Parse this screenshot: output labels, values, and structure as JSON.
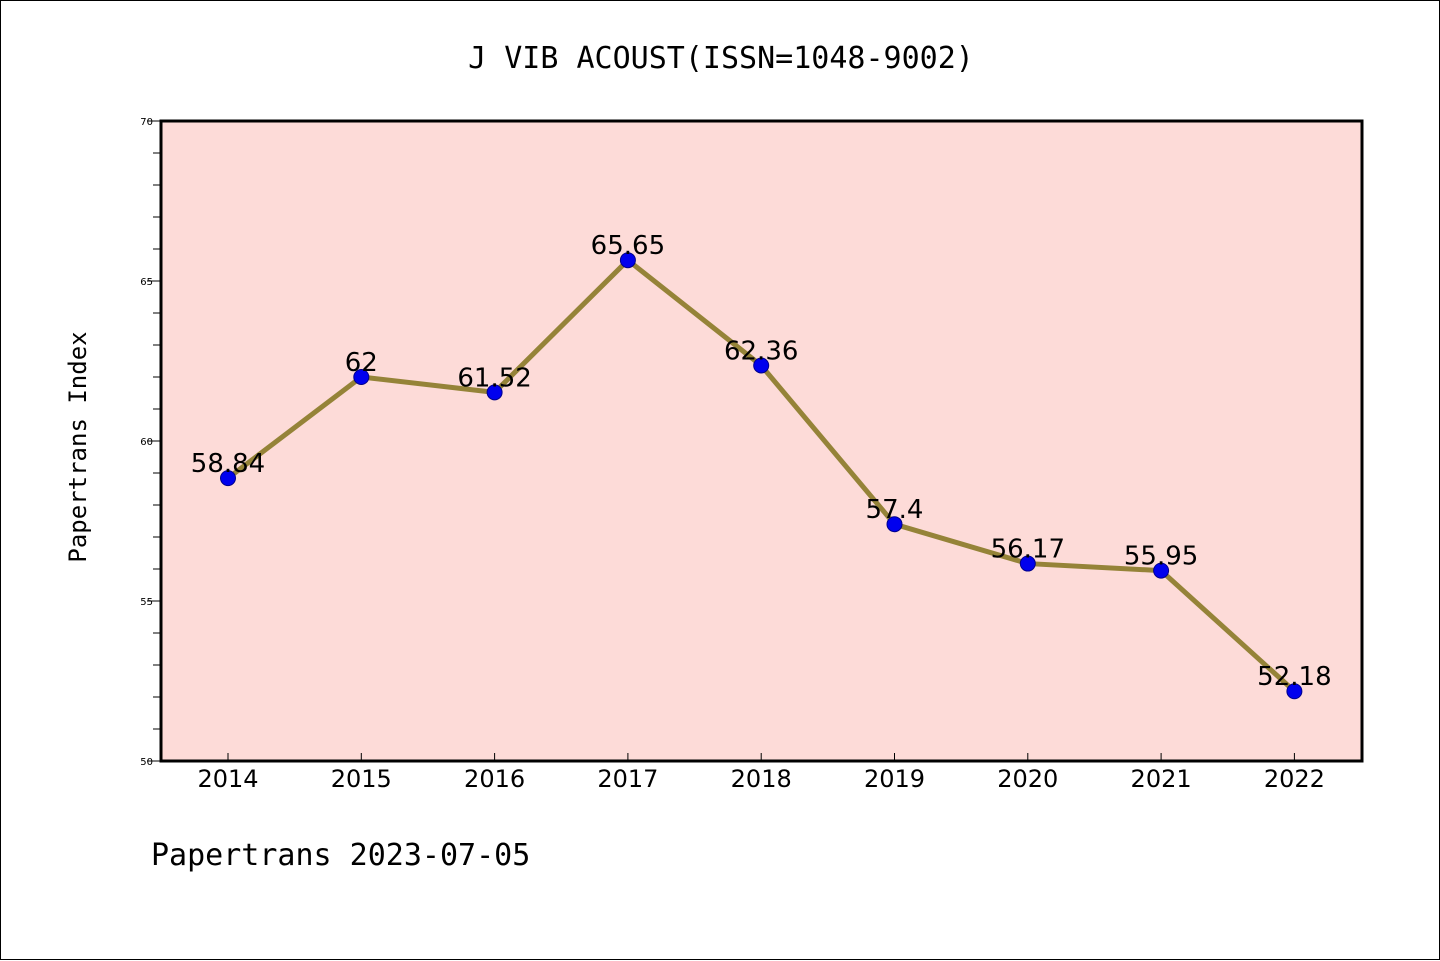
{
  "chart_data": {
    "type": "line",
    "title": "J VIB ACOUST(ISSN=1048-9002)",
    "xlabel": "",
    "ylabel": "Papertrans Index",
    "categories": [
      "2014",
      "2015",
      "2016",
      "2017",
      "2018",
      "2019",
      "2020",
      "2021",
      "2022"
    ],
    "values": [
      58.84,
      62,
      61.52,
      65.65,
      62.36,
      57.4,
      56.17,
      55.95,
      52.18
    ],
    "data_labels": [
      "58.84",
      "62",
      "61.52",
      "65.65",
      "62.36",
      "57.4",
      "56.17",
      "55.95",
      "52.18"
    ],
    "ylim": [
      50,
      70
    ],
    "yticks": [
      "50",
      "55",
      "60",
      "65",
      "70"
    ],
    "grid": false,
    "legend": "none",
    "footer": "Papertrans 2023-07-05",
    "colors": {
      "plot_background": "#fddbd8",
      "line": "#958338",
      "marker": "#0000ee",
      "marker_edge": "#00008b"
    }
  }
}
